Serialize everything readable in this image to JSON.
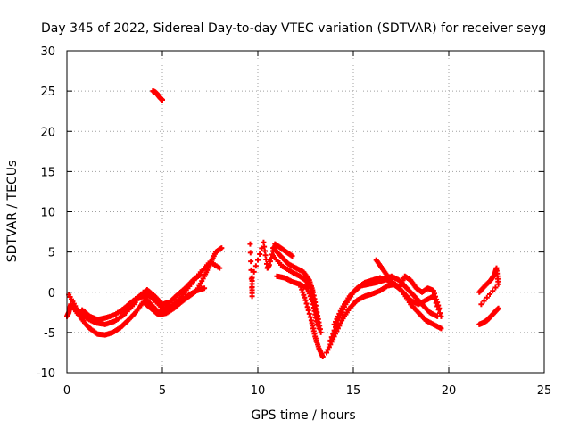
{
  "chart_data": {
    "type": "scatter",
    "title": "Day 345 of 2022, Sidereal Day-to-day VTEC variation (SDTVAR) for receiver seyg",
    "xlabel": "GPS time / hours",
    "ylabel": "SDTVAR / TECUs",
    "xlim": [
      0,
      25
    ],
    "ylim": [
      -10,
      30
    ],
    "xticks": [
      "0",
      "5",
      "10",
      "15",
      "20",
      "25"
    ],
    "yticks": [
      "-10",
      "-5",
      "0",
      "5",
      "10",
      "15",
      "20",
      "25",
      "30"
    ],
    "grid": true,
    "marker": "plus",
    "color": "#ff0000",
    "series": [
      {
        "name": "s1",
        "x": [
          0.0,
          0.1,
          0.2,
          0.6,
          1.0,
          1.2,
          1.6,
          2.0,
          2.4,
          2.8,
          3.2,
          3.6,
          4.0,
          4.4,
          4.8,
          5.2,
          5.6,
          6.0,
          6.4,
          6.8,
          7.2,
          7.5,
          7.8,
          8.1
        ],
        "y": [
          -3.0,
          -2.5,
          -1.5,
          -2.8,
          -4.0,
          -4.5,
          -5.2,
          -5.3,
          -5.0,
          -4.4,
          -3.5,
          -2.5,
          -1.2,
          -2.0,
          -2.8,
          -2.6,
          -2.0,
          -1.2,
          -0.5,
          0.2,
          2.0,
          3.5,
          5.0,
          5.5
        ]
      },
      {
        "name": "s2",
        "x": [
          0.1,
          0.5,
          1.0,
          1.5,
          2.0,
          2.5,
          3.0,
          3.5,
          4.0,
          4.5,
          5.0,
          5.5,
          6.0,
          6.5,
          7.0,
          7.5,
          8.0
        ],
        "y": [
          -0.3,
          -2.0,
          -3.2,
          -3.8,
          -4.0,
          -3.6,
          -2.8,
          -1.5,
          0.0,
          -0.8,
          -2.0,
          -1.8,
          -0.5,
          1.0,
          2.5,
          3.8,
          3.0
        ]
      },
      {
        "name": "s3",
        "x": [
          0.8,
          1.2,
          1.6,
          2.0,
          2.5,
          3.0,
          3.4,
          3.8,
          4.2,
          4.6,
          5.0,
          5.4,
          5.8,
          6.2,
          6.6,
          7.0
        ],
        "y": [
          -2.2,
          -3.0,
          -3.4,
          -3.2,
          -2.8,
          -2.0,
          -1.2,
          -0.5,
          0.3,
          -0.5,
          -1.5,
          -1.2,
          -0.3,
          0.5,
          1.5,
          2.2
        ]
      },
      {
        "name": "s4",
        "x": [
          2.8,
          3.2,
          3.6,
          4.0,
          4.4,
          4.8,
          5.2,
          5.6,
          6.0,
          6.4,
          6.8,
          7.2
        ],
        "y": [
          -2.5,
          -1.8,
          -0.8,
          -0.5,
          -1.5,
          -2.5,
          -2.2,
          -1.5,
          -1.0,
          -0.3,
          0.2,
          0.5
        ]
      },
      {
        "name": "s5",
        "x": [
          4.5,
          4.6,
          4.7,
          4.8,
          4.9,
          5.0
        ],
        "y": [
          25.0,
          24.9,
          24.7,
          24.4,
          24.1,
          23.9
        ]
      },
      {
        "name": "s6",
        "x": [
          9.6,
          9.7,
          9.7,
          10.3,
          10.5,
          10.6,
          10.9,
          11.2,
          11.5,
          11.8
        ],
        "y": [
          6.0,
          -0.5,
          1.8,
          6.2,
          3.0,
          3.4,
          6.0,
          5.5,
          5.0,
          4.5
        ]
      },
      {
        "name": "s7",
        "x": [
          10.8,
          11.2,
          11.6,
          12.0,
          12.4,
          12.7,
          12.9,
          13.1,
          13.3
        ],
        "y": [
          5.5,
          4.5,
          3.5,
          3.0,
          2.5,
          1.5,
          0.0,
          -2.5,
          -5.0
        ]
      },
      {
        "name": "s8",
        "x": [
          10.8,
          11.3,
          11.8,
          12.2,
          12.5,
          12.8,
          13.0,
          13.2
        ],
        "y": [
          4.5,
          3.2,
          2.5,
          2.0,
          1.5,
          0.5,
          -2.0,
          -4.5
        ]
      },
      {
        "name": "s9",
        "x": [
          11.0,
          11.4,
          11.8,
          12.2,
          12.6,
          12.9,
          13.1
        ],
        "y": [
          2.0,
          1.8,
          1.3,
          1.0,
          0.5,
          -1.5,
          -4.0
        ]
      },
      {
        "name": "s10",
        "x": [
          12.2,
          12.5,
          12.8,
          13.0,
          13.2,
          13.4
        ],
        "y": [
          1.0,
          -1.0,
          -3.5,
          -5.5,
          -7.0,
          -8.0
        ]
      },
      {
        "name": "s11",
        "x": [
          13.6,
          14.0,
          14.4,
          14.8,
          15.2,
          15.6,
          16.0,
          16.4,
          16.8,
          17.2,
          17.6,
          18.0,
          18.4,
          18.8,
          19.2,
          19.6
        ],
        "y": [
          -7.5,
          -5.5,
          -3.5,
          -2.0,
          -1.0,
          -0.5,
          -0.2,
          0.2,
          0.8,
          1.0,
          0.0,
          -1.5,
          -2.5,
          -3.5,
          -4.0,
          -4.5
        ]
      },
      {
        "name": "s12",
        "x": [
          13.8,
          14.2,
          14.6,
          15.0,
          15.4,
          15.8,
          16.2,
          16.6,
          17.0,
          17.4,
          17.8,
          18.2,
          18.6,
          19.0,
          19.4
        ],
        "y": [
          -6.0,
          -3.5,
          -1.5,
          0.0,
          0.8,
          1.0,
          1.2,
          1.5,
          2.0,
          1.5,
          0.5,
          -0.5,
          -1.5,
          -2.5,
          -3.0
        ]
      },
      {
        "name": "s13",
        "x": [
          14.0,
          14.4,
          14.8,
          15.2,
          15.6,
          16.0,
          16.4,
          16.8,
          17.2,
          17.6,
          18.0,
          18.4,
          18.8,
          19.2,
          19.6
        ],
        "y": [
          -4.0,
          -2.0,
          -0.5,
          0.5,
          1.2,
          1.5,
          1.8,
          1.5,
          1.0,
          0.0,
          -1.0,
          -1.5,
          -1.0,
          -0.5,
          -3.0
        ]
      },
      {
        "name": "s14",
        "x": [
          16.2,
          16.5,
          16.8,
          17.1,
          17.4,
          17.7,
          18.0,
          18.3,
          18.6,
          18.9,
          19.2,
          19.5
        ],
        "y": [
          4.0,
          3.0,
          2.0,
          1.0,
          0.5,
          2.0,
          1.5,
          0.5,
          0.0,
          0.5,
          0.2,
          -2.0
        ]
      },
      {
        "name": "s15",
        "x": [
          21.6,
          21.8,
          22.0,
          22.2,
          22.4,
          22.6
        ],
        "y": [
          -4.0,
          -3.8,
          -3.5,
          -3.0,
          -2.5,
          -2.0
        ]
      },
      {
        "name": "s16",
        "x": [
          21.6,
          21.9,
          22.2,
          22.4,
          22.5,
          22.6,
          21.7
        ],
        "y": [
          0.0,
          0.8,
          1.5,
          2.2,
          3.0,
          1.0,
          -1.5
        ]
      }
    ]
  }
}
